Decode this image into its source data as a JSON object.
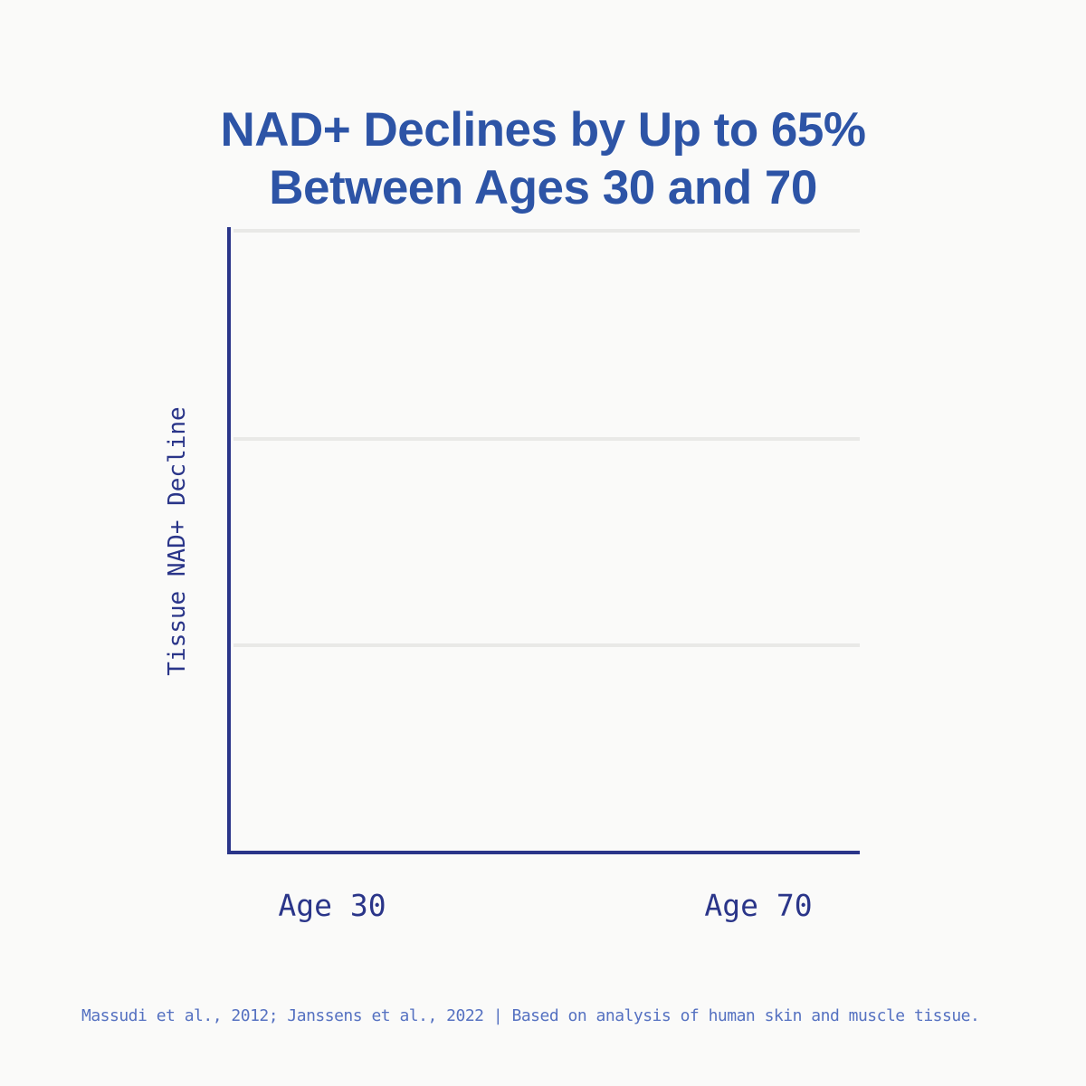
{
  "page": {
    "background_color": "#fafaf9"
  },
  "title": {
    "lines": [
      "NAD+ Declines by Up to 65%",
      "Between Ages 30 and 70"
    ],
    "color": "#2d54a6"
  },
  "chart_data": {
    "type": "bar",
    "title": "NAD+ Declines by Up to 65% Between Ages 30 and 70",
    "categories": [
      "Age 30",
      "Age 70"
    ],
    "values": [],
    "bars_rendered": false,
    "xlabel": "",
    "ylabel": "Tissue NAD+ Decline",
    "y_tick_labels": [],
    "grid": true,
    "gridlines": {
      "horizontal_count": 3,
      "color": "#e9e9e7"
    },
    "axis_color": "#2a3589",
    "legend": false
  },
  "footer": {
    "source": "Massudi et al., 2012; Janssens et al., 2022 | Based on analysis of human skin and muscle tissue.",
    "color": "#5571c1"
  }
}
